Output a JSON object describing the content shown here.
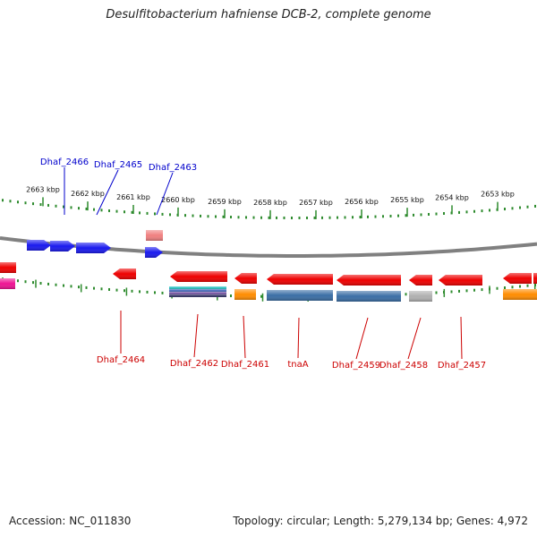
{
  "title": "Desulfitobacterium hafniense DCB-2, complete genome",
  "accession_label": "Accession: NC_011830",
  "summary_label": "Topology: circular; Length: 5,279,134 bp; Genes: 4,972",
  "colors": {
    "backbone": "#808080",
    "scale": "#2e8b2e",
    "forward_label": "#0000cc",
    "reverse_label": "#cc0000"
  },
  "scale_labels": [
    "2663 kbp",
    "2662 kbp",
    "2661 kbp",
    "2660 kbp",
    "2659 kbp",
    "2658 kbp",
    "2657 kbp",
    "2656 kbp",
    "2655 kbp",
    "2654 kbp",
    "2653 kbp"
  ],
  "forward_genes": [
    {
      "label": "Dhaf_2466",
      "color": "#1a1aee"
    },
    {
      "label": "Dhaf_2465",
      "color": "#1a1aee"
    },
    {
      "label": "",
      "color": "#1a1aee"
    },
    {
      "label": "Dhaf_2463",
      "color": "#1a1aee"
    },
    {
      "label": "",
      "color": "#f08080"
    }
  ],
  "reverse_genes": [
    {
      "label": "",
      "color": "#ee0000"
    },
    {
      "label": "",
      "color": "#ee1493"
    },
    {
      "label": "Dhaf_2464",
      "color": "#ee0000"
    },
    {
      "label": "Dhaf_2462",
      "color": "#ee0000"
    },
    {
      "label": "Dhaf_2461",
      "color": "#ee0000"
    },
    {
      "label": "tnaA",
      "color": "#ee0000"
    },
    {
      "label": "Dhaf_2459",
      "color": "#ee0000"
    },
    {
      "label": "Dhaf_2458",
      "color": "#ee0000"
    },
    {
      "label": "Dhaf_2457",
      "color": "#ee0000"
    },
    {
      "label": "",
      "color": "#ee0000"
    },
    {
      "label": "",
      "color": "#ee0000"
    }
  ],
  "feature_bars": [
    {
      "name": "Dhaf_2462",
      "colors": [
        "#2ec4c4",
        "#4a6fbf",
        "#7a5aa8",
        "#333366"
      ]
    },
    {
      "name": "Dhaf_2461",
      "colors": [
        "#ff8c00"
      ]
    },
    {
      "name": "tnaA",
      "colors": [
        "#3a6ea5"
      ]
    },
    {
      "name": "Dhaf_2459",
      "colors": [
        "#3a6ea5"
      ]
    },
    {
      "name": "Dhaf_2458",
      "colors": [
        "#b0b0b0"
      ]
    },
    {
      "name": "",
      "colors": [
        "#ff8c00"
      ]
    }
  ]
}
